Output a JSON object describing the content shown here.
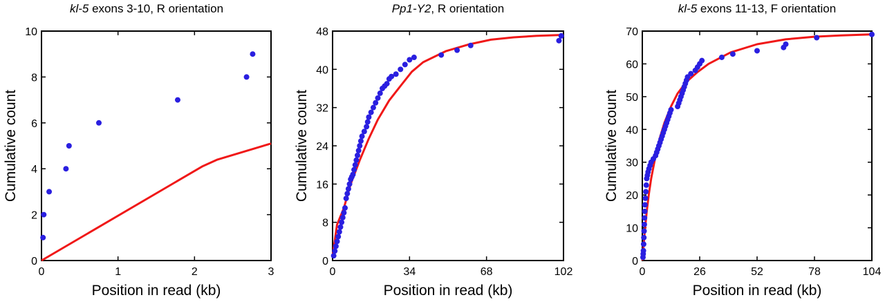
{
  "colors": {
    "points": "#2a1fe0",
    "fit": "#f01818",
    "axis": "#000000"
  },
  "chart_data": [
    {
      "type": "scatter",
      "title": {
        "italic": "kl-5",
        "rest": " exons 3-10, R orientation"
      },
      "xlabel": "Position in read (kb)",
      "ylabel": "Cumulative count",
      "xlim": [
        0,
        3
      ],
      "ylim": [
        0,
        10
      ],
      "xticks": [
        0,
        1,
        2,
        3
      ],
      "yticks": [
        0,
        2,
        4,
        6,
        8,
        10
      ],
      "grid": false,
      "series": [
        {
          "kind": "points",
          "x": [
            0.02,
            0.03,
            0.1,
            0.32,
            0.36,
            0.75,
            1.78,
            2.68,
            2.76
          ],
          "y": [
            1,
            2,
            3,
            4,
            5,
            6,
            7,
            8,
            9
          ]
        },
        {
          "kind": "fit",
          "x": [
            0,
            2.1,
            2.3,
            3
          ],
          "y": [
            0,
            4.1,
            4.4,
            5.1
          ]
        }
      ]
    },
    {
      "type": "scatter",
      "title": {
        "italic": "Pp1-Y2",
        "rest": ", R orientation"
      },
      "xlabel": "Position in read (kb)",
      "ylabel": "Cumulative count",
      "xlim": [
        0,
        102
      ],
      "ylim": [
        0,
        48
      ],
      "xticks": [
        0,
        34,
        68,
        102
      ],
      "yticks": [
        0,
        8,
        16,
        24,
        32,
        40,
        48
      ],
      "grid": false,
      "series": [
        {
          "kind": "points",
          "x": [
            0.5,
            1,
            1.5,
            2,
            2.5,
            3,
            3.5,
            4,
            4.5,
            5,
            5.5,
            6,
            6.5,
            7,
            7.5,
            8,
            8.5,
            9,
            9.5,
            10,
            10.5,
            11,
            11.5,
            12,
            12.5,
            13,
            14,
            15,
            15.5,
            16,
            17,
            18,
            19,
            20,
            21,
            22,
            23,
            24,
            25,
            26,
            28,
            30,
            32,
            34,
            36,
            48,
            55,
            61,
            100,
            101
          ],
          "y": [
            1,
            2,
            3,
            4,
            5,
            6,
            7,
            8,
            9,
            10,
            11,
            13,
            14,
            15,
            16,
            17,
            17.5,
            18,
            19,
            20,
            21,
            22,
            23,
            24,
            25,
            26,
            27,
            28,
            29,
            30,
            31,
            32,
            33,
            34,
            35,
            36,
            36.5,
            37,
            38,
            38.5,
            39,
            40,
            41,
            42,
            42.5,
            43,
            44,
            45,
            46,
            47
          ]
        },
        {
          "kind": "fit",
          "x": [
            0,
            2,
            5,
            8,
            12,
            16,
            20,
            25,
            30,
            35,
            40,
            50,
            60,
            70,
            80,
            90,
            102
          ],
          "y": [
            1,
            7.5,
            11,
            16,
            21,
            25.5,
            29.5,
            33.5,
            36.5,
            39.5,
            41.5,
            43.8,
            45.2,
            46.2,
            46.7,
            47,
            47.2
          ]
        }
      ]
    },
    {
      "type": "scatter",
      "title": {
        "italic": "kl-5",
        "rest": " exons 11-13, F orientation"
      },
      "xlabel": "Position in read (kb)",
      "ylabel": "Cumulative count",
      "xlim": [
        0,
        104
      ],
      "ylim": [
        0,
        70
      ],
      "xticks": [
        0,
        26,
        52,
        78,
        104
      ],
      "yticks": [
        0,
        10,
        20,
        30,
        40,
        50,
        60,
        70
      ],
      "grid": false,
      "series": [
        {
          "kind": "points",
          "x": [
            0.3,
            0.4,
            0.5,
            0.6,
            0.7,
            0.8,
            0.9,
            1,
            1.1,
            1.2,
            1.4,
            1.6,
            1.8,
            2,
            2.3,
            2.6,
            3,
            3.5,
            4,
            5,
            6,
            6.5,
            7,
            7.5,
            8,
            8.5,
            9,
            9.5,
            10,
            10.5,
            11,
            11.5,
            12,
            12.5,
            13,
            16,
            16.5,
            17,
            17.5,
            18,
            18.5,
            19,
            19.5,
            20,
            20.5,
            22,
            24,
            25,
            26,
            27,
            36,
            41,
            52,
            64,
            65,
            79,
            104
          ],
          "y": [
            1,
            2,
            3,
            5,
            7,
            9,
            11,
            13,
            15,
            17,
            19,
            21,
            23,
            25,
            26,
            27,
            28,
            29,
            30,
            31,
            32,
            33,
            34,
            35,
            36,
            37,
            38,
            39,
            40,
            41,
            42,
            43,
            44,
            45,
            46,
            47,
            48,
            49,
            50,
            51,
            52,
            53,
            54,
            55,
            56,
            57,
            58,
            59,
            60,
            61,
            62,
            63,
            64,
            65,
            66,
            68,
            69
          ]
        },
        {
          "kind": "fit",
          "x": [
            0,
            1,
            2,
            3,
            4,
            6,
            8,
            10,
            13,
            16,
            20,
            25,
            30,
            40,
            52,
            65,
            78,
            90,
            104
          ],
          "y": [
            0,
            8,
            15,
            20.5,
            25,
            32,
            37.5,
            42,
            47,
            51,
            54.5,
            57.5,
            60,
            63.5,
            66,
            67.5,
            68.3,
            68.7,
            69
          ]
        }
      ]
    }
  ]
}
